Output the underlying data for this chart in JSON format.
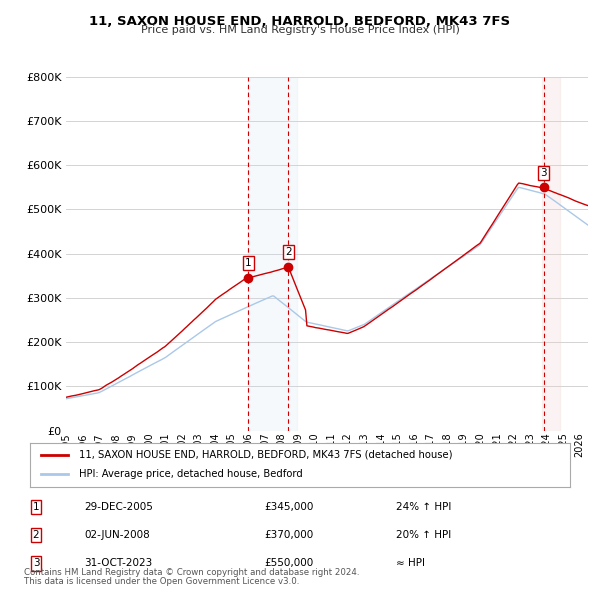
{
  "title": "11, SAXON HOUSE END, HARROLD, BEDFORD, MK43 7FS",
  "subtitle": "Price paid vs. HM Land Registry's House Price Index (HPI)",
  "ylim": [
    0,
    800000
  ],
  "yticks": [
    0,
    100000,
    200000,
    300000,
    400000,
    500000,
    600000,
    700000,
    800000
  ],
  "ytick_labels": [
    "£0",
    "£100K",
    "£200K",
    "£300K",
    "£400K",
    "£500K",
    "£600K",
    "£700K",
    "£800K"
  ],
  "hpi_color": "#aac8e8",
  "price_color": "#cc0000",
  "bg_color": "#ffffff",
  "grid_color": "#cccccc",
  "shade_blue": "#ccdff0",
  "shade_pink": "#f0d0d0",
  "legend_label_price": "11, SAXON HOUSE END, HARROLD, BEDFORD, MK43 7FS (detached house)",
  "legend_label_hpi": "HPI: Average price, detached house, Bedford",
  "transactions": [
    {
      "num": 1,
      "date": "29-DEC-2005",
      "price": 345000,
      "x": 2005.99,
      "hpi_note": "24% ↑ HPI"
    },
    {
      "num": 2,
      "date": "02-JUN-2008",
      "price": 370000,
      "x": 2008.42,
      "hpi_note": "20% ↑ HPI"
    },
    {
      "num": 3,
      "date": "31-OCT-2023",
      "price": 550000,
      "x": 2023.83,
      "hpi_note": "≈ HPI"
    }
  ],
  "footnote1": "Contains HM Land Registry data © Crown copyright and database right 2024.",
  "footnote2": "This data is licensed under the Open Government Licence v3.0.",
  "xmin": 1995.0,
  "xmax": 2026.5
}
